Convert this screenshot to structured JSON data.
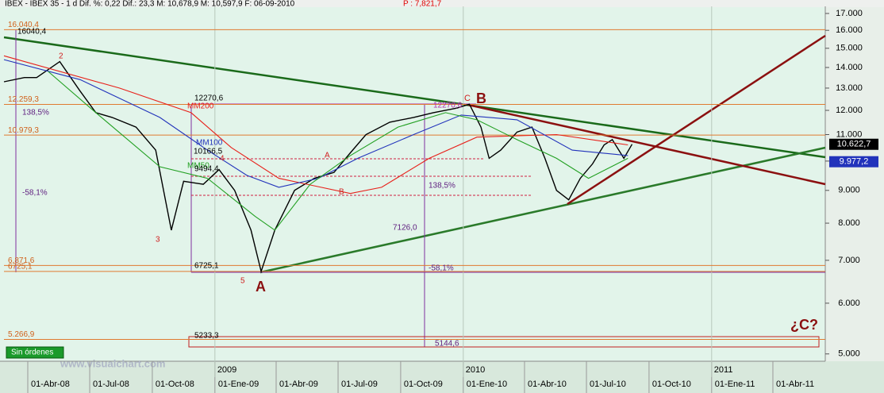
{
  "chart_data": {
    "type": "line",
    "title": "IBEX - IBEX 35 - 1 d Dif. %: 0,22 Dif.: 23,3 M: 10,678,9 M: 10,597,9 F: 06-09-2010",
    "title_extra": "P : 7,821,7",
    "log_scale": true,
    "xlim": [
      "2008-02-26",
      "2011-06-17"
    ],
    "ylim": [
      4870,
      17440
    ],
    "xticks": [
      {
        "value": "2008-04-01",
        "label": "01-Abr-08"
      },
      {
        "value": "2008-07-01",
        "label": "01-Jul-08"
      },
      {
        "value": "2008-10-01",
        "label": "01-Oct-08"
      },
      {
        "value": "2009-01-01",
        "label": "01-Ene-09"
      },
      {
        "value": "2009-04-01",
        "label": "01-Abr-09"
      },
      {
        "value": "2009-07-01",
        "label": "01-Jul-09"
      },
      {
        "value": "2009-10-01",
        "label": "01-Oct-09"
      },
      {
        "value": "2010-01-01",
        "label": "01-Ene-10"
      },
      {
        "value": "2010-04-01",
        "label": "01-Abr-10"
      },
      {
        "value": "2010-07-01",
        "label": "01-Jul-10"
      },
      {
        "value": "2010-10-01",
        "label": "01-Oct-10"
      },
      {
        "value": "2011-01-01",
        "label": "01-Ene-11"
      },
      {
        "value": "2011-04-01",
        "label": "01-Abr-11"
      }
    ],
    "year_ticks": [
      {
        "value": "2009-01-01",
        "label": "2009"
      },
      {
        "value": "2010-01-01",
        "label": "2010"
      },
      {
        "value": "2011-01-01",
        "label": "2011"
      }
    ],
    "yticks": [
      {
        "value": 5000,
        "label": "5.000"
      },
      {
        "value": 6000,
        "label": "6.000"
      },
      {
        "value": 7000,
        "label": "7.000"
      },
      {
        "value": 8000,
        "label": "8.000"
      },
      {
        "value": 9000,
        "label": "9.000"
      },
      {
        "value": 10000,
        "label": "10.000"
      },
      {
        "value": 11000,
        "label": "11.000"
      },
      {
        "value": 12000,
        "label": "12.000"
      },
      {
        "value": 13000,
        "label": "13.000"
      },
      {
        "value": 14000,
        "label": "14.000"
      },
      {
        "value": 15000,
        "label": "15.000"
      },
      {
        "value": 16000,
        "label": "16.000"
      },
      {
        "value": 17000,
        "label": "17.000"
      }
    ],
    "series": [
      {
        "name": "IBEX 35",
        "color": "#000000",
        "x": [
          "2008-02-26",
          "2008-03-27",
          "2008-04-14",
          "2008-05-18",
          "2008-06-16",
          "2008-07-10",
          "2008-08-03",
          "2008-09-07",
          "2008-10-06",
          "2008-10-29",
          "2008-11-16",
          "2008-12-15",
          "2009-01-07",
          "2009-01-30",
          "2009-02-23",
          "2009-03-10",
          "2009-03-30",
          "2009-04-28",
          "2009-05-27",
          "2009-06-25",
          "2009-07-19",
          "2009-08-11",
          "2009-09-15",
          "2009-10-20",
          "2009-11-18",
          "2009-12-23",
          "2010-01-10",
          "2010-01-27",
          "2010-02-08",
          "2010-02-25",
          "2010-03-21",
          "2010-04-12",
          "2010-05-01",
          "2010-05-18",
          "2010-06-05",
          "2010-06-22",
          "2010-07-10",
          "2010-07-27",
          "2010-08-08",
          "2010-08-25",
          "2010-09-06"
        ],
        "values": [
          13300,
          13500,
          13500,
          14300,
          12900,
          11900,
          11700,
          11300,
          10400,
          7800,
          9300,
          9200,
          9700,
          9000,
          7800,
          6725.1,
          7800,
          9000,
          9400,
          9600,
          10300,
          11000,
          11500,
          11700,
          11900,
          12100,
          12270.6,
          11300,
          10100,
          10400,
          11100,
          11300,
          10100,
          9000,
          8700,
          9400,
          9900,
          10600,
          10800,
          10100,
          10622.7
        ]
      },
      {
        "name": "MM200",
        "color": "#e8201a",
        "x": [
          "2008-02-26",
          "2008-08-14",
          "2008-11-27",
          "2009-01-25",
          "2009-04-05",
          "2009-07-19",
          "2009-09-03",
          "2009-11-12",
          "2010-01-21",
          "2010-05-18",
          "2010-08-31"
        ],
        "values": [
          14600,
          13000,
          11900,
          10500,
          9400,
          8900,
          9100,
          10100,
          10900,
          11000,
          10600
        ]
      },
      {
        "name": "MM100",
        "color": "#2233bb",
        "x": [
          "2008-02-26",
          "2008-06-17",
          "2008-10-12",
          "2008-12-21",
          "2009-02-17",
          "2009-04-05",
          "2009-06-02",
          "2009-07-30",
          "2009-10-20",
          "2009-12-29",
          "2010-03-21",
          "2010-06-10",
          "2010-08-31"
        ],
        "values": [
          14400,
          13400,
          11700,
          10400,
          9500,
          9100,
          9400,
          10100,
          11000,
          11800,
          11600,
          10400,
          10200
        ]
      },
      {
        "name": "MM50",
        "color": "#22a022",
        "x": [
          "2008-05-01",
          "2008-07-10",
          "2008-10-12",
          "2008-12-21",
          "2009-03-01",
          "2009-03-30",
          "2009-05-21",
          "2009-07-19",
          "2009-09-27",
          "2009-12-06",
          "2010-01-21",
          "2010-03-21",
          "2010-05-18",
          "2010-07-04",
          "2010-08-31"
        ],
        "values": [
          13800,
          11900,
          9800,
          9400,
          8200,
          7800,
          9200,
          10200,
          11300,
          11900,
          11600,
          10800,
          10100,
          9400,
          10100
        ]
      }
    ],
    "levels": [
      {
        "value": 16040.4,
        "label": "16.040,4"
      },
      {
        "value": 12259.3,
        "label": "12.259,3"
      },
      {
        "value": 10979.3,
        "label": "10.979,3"
      },
      {
        "value": 6871.6,
        "label": "6.871,6"
      },
      {
        "value": 6725.1,
        "label": "6725,1"
      },
      {
        "value": 5266.9,
        "label": "5.266,9"
      }
    ],
    "price_tags": [
      {
        "value": 10622.7,
        "label": "10.622,7",
        "color": "#000000"
      },
      {
        "value": 9977.2,
        "label": "9.977,2",
        "color": "#2233bb"
      }
    ],
    "annotations": [
      "16040,4",
      "138,5%",
      "-58,1%",
      "12270,6",
      "MM200",
      "MM100",
      "10166,5",
      "4",
      "MM50",
      "9494,4",
      "6725,1",
      "5233,3",
      "5",
      "A",
      "3",
      "2",
      "12270,6",
      "C",
      "B",
      "A",
      "B",
      "138,5%",
      "7126,0",
      "-58,1%",
      "5144,6",
      "¿C?"
    ],
    "status_button": "Sin órdenes",
    "watermark": "www.visualchart.com"
  }
}
